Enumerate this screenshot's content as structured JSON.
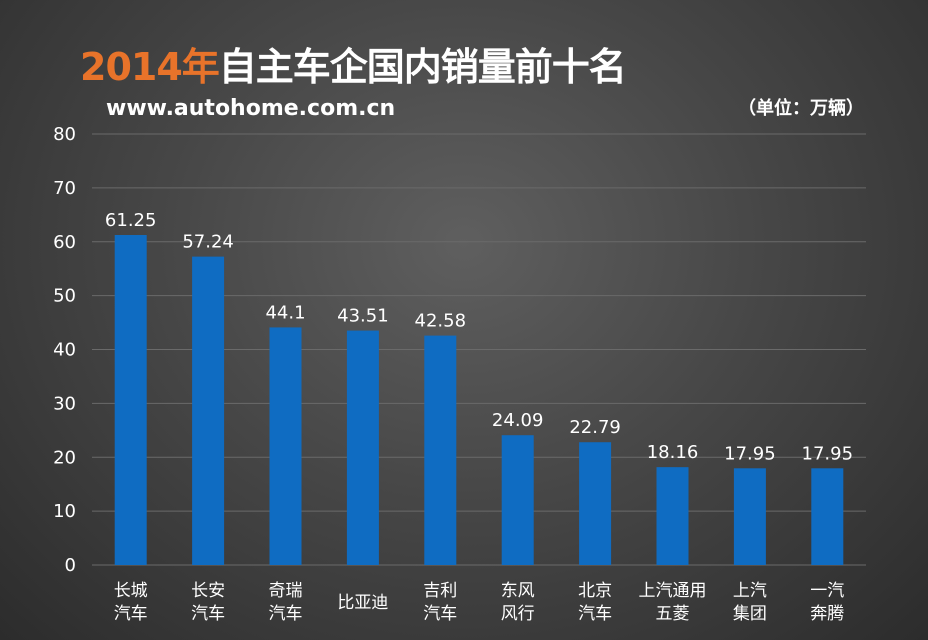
{
  "header": {
    "title_year": "2014年",
    "title_rest": "自主车企国内销量前十名",
    "site": "www.autohome.com.cn",
    "unit": "（单位：万辆）"
  },
  "chart_data": {
    "type": "bar",
    "title": "2014年自主车企国内销量前十名",
    "categories": [
      [
        "长城",
        "汽车"
      ],
      [
        "长安",
        "汽车"
      ],
      [
        "奇瑞",
        "汽车"
      ],
      [
        "比亚迪"
      ],
      [
        "吉利",
        "汽车"
      ],
      [
        "东风",
        "风行"
      ],
      [
        "北京",
        "汽车"
      ],
      [
        "上汽通用",
        "五菱"
      ],
      [
        "上汽",
        "集团"
      ],
      [
        "一汽",
        "奔腾"
      ]
    ],
    "values": [
      61.25,
      57.24,
      44.1,
      43.51,
      42.58,
      24.09,
      22.79,
      18.16,
      17.95,
      17.95
    ],
    "value_labels": [
      "61.25",
      "57.24",
      "44.1",
      "43.51",
      "42.58",
      "24.09",
      "22.79",
      "18.16",
      "17.95",
      "17.95"
    ],
    "ylim": [
      0,
      80
    ],
    "yticks": [
      0,
      10,
      20,
      30,
      40,
      50,
      60,
      70,
      80
    ],
    "grid": true,
    "bar_color": "#0f6cc2",
    "title_accent_color": "#e8732a"
  }
}
